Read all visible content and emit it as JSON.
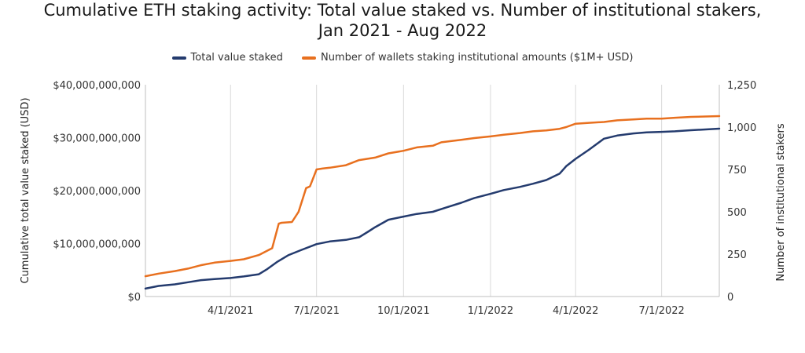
{
  "chart_data": {
    "type": "line",
    "title_line1": "Cumulative ETH staking activity: Total value staked vs. Number of institutional stakers,",
    "title_line2": "Jan 2021 - Aug 2022",
    "ylabel_left": "Cumulative total value staked (USD)",
    "ylabel_right": "Number of institutional stakers",
    "x_ticks": [
      "4/1/2021",
      "7/1/2021",
      "10/1/2021",
      "1/1/2022",
      "4/1/2022",
      "7/1/2022"
    ],
    "y_left_ticks": [
      "$0",
      "$10,000,000,000",
      "$20,000,000,000",
      "$30,000,000,000",
      "$40,000,000,000"
    ],
    "y_right_ticks": [
      "0",
      "250",
      "500",
      "750",
      "1,000",
      "1,250"
    ],
    "ylim_left": [
      0,
      40000000000
    ],
    "ylim_right": [
      0,
      1250
    ],
    "x_range": [
      "2021-01-01",
      "2022-08-31"
    ],
    "grid": "vertical",
    "legend_position": "top",
    "series": [
      {
        "name": "Total value staked",
        "axis": "left",
        "color": "#243B6E",
        "dates": [
          "2021-01-01",
          "2021-01-15",
          "2021-02-01",
          "2021-02-15",
          "2021-03-01",
          "2021-03-15",
          "2021-04-01",
          "2021-04-15",
          "2021-05-01",
          "2021-05-10",
          "2021-05-20",
          "2021-06-01",
          "2021-06-15",
          "2021-07-01",
          "2021-07-15",
          "2021-08-01",
          "2021-08-15",
          "2021-08-25",
          "2021-09-01",
          "2021-09-15",
          "2021-10-01",
          "2021-10-15",
          "2021-11-01",
          "2021-11-15",
          "2021-12-01",
          "2021-12-15",
          "2022-01-01",
          "2022-01-15",
          "2022-02-01",
          "2022-02-15",
          "2022-03-01",
          "2022-03-15",
          "2022-03-22",
          "2022-04-01",
          "2022-04-15",
          "2022-05-01",
          "2022-05-15",
          "2022-06-01",
          "2022-06-15",
          "2022-07-01",
          "2022-07-15",
          "2022-08-01",
          "2022-08-31"
        ],
        "values": [
          1500000000,
          2000000000,
          2300000000,
          2700000000,
          3100000000,
          3300000000,
          3500000000,
          3800000000,
          4200000000,
          5200000000,
          6500000000,
          7800000000,
          8800000000,
          9900000000,
          10400000000,
          10700000000,
          11200000000,
          12300000000,
          13100000000,
          14500000000,
          15100000000,
          15600000000,
          16000000000,
          16800000000,
          17700000000,
          18600000000,
          19400000000,
          20100000000,
          20700000000,
          21300000000,
          22000000000,
          23200000000,
          24600000000,
          26000000000,
          27700000000,
          29800000000,
          30400000000,
          30800000000,
          31000000000,
          31100000000,
          31200000000,
          31400000000,
          31700000000
        ]
      },
      {
        "name": "Number of wallets staking institutional amounts ($1M+ USD)",
        "axis": "right",
        "color": "#E8701F",
        "dates": [
          "2021-01-01",
          "2021-01-15",
          "2021-02-01",
          "2021-02-15",
          "2021-03-01",
          "2021-03-15",
          "2021-04-01",
          "2021-04-15",
          "2021-05-01",
          "2021-05-15",
          "2021-05-22",
          "2021-05-25",
          "2021-06-05",
          "2021-06-12",
          "2021-06-20",
          "2021-06-24",
          "2021-07-01",
          "2021-07-07",
          "2021-07-15",
          "2021-08-01",
          "2021-08-15",
          "2021-09-01",
          "2021-09-15",
          "2021-10-01",
          "2021-10-15",
          "2021-11-01",
          "2021-11-10",
          "2021-12-01",
          "2021-12-15",
          "2022-01-01",
          "2022-01-15",
          "2022-02-01",
          "2022-02-15",
          "2022-03-01",
          "2022-03-15",
          "2022-03-22",
          "2022-04-01",
          "2022-04-15",
          "2022-05-01",
          "2022-05-15",
          "2022-06-01",
          "2022-06-15",
          "2022-07-01",
          "2022-07-15",
          "2022-08-01",
          "2022-08-31"
        ],
        "values": [
          120,
          135,
          150,
          165,
          185,
          200,
          210,
          220,
          245,
          285,
          430,
          435,
          440,
          500,
          640,
          650,
          750,
          755,
          760,
          775,
          805,
          820,
          845,
          860,
          880,
          890,
          910,
          925,
          935,
          945,
          955,
          965,
          975,
          980,
          990,
          1000,
          1020,
          1025,
          1030,
          1040,
          1045,
          1050,
          1050,
          1055,
          1060,
          1065
        ]
      }
    ]
  }
}
